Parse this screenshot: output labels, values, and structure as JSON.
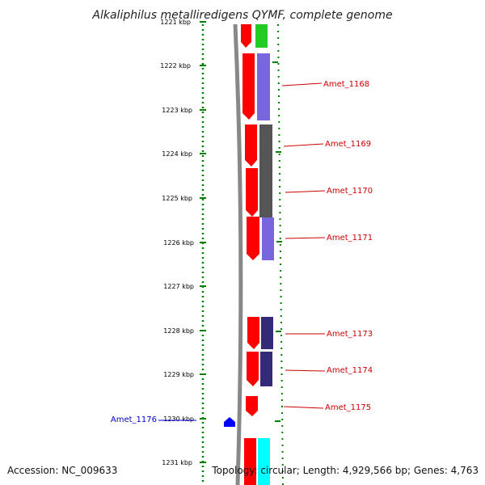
{
  "title": "Alkaliphilus metalliredigens QYMF, complete genome",
  "footer": {
    "accession": "Accession: NC_009633",
    "summary": "Topology: circular; Length: 4,929,566 bp; Genes: 4,763"
  },
  "ruler": {
    "ticks": [
      "1221 kbp",
      "1222 kbp",
      "1223 kbp",
      "1224 kbp",
      "1225 kbp",
      "1226 kbp",
      "1227 kbp",
      "1228 kbp",
      "1229 kbp",
      "1230 kbp",
      "1231 kbp"
    ]
  },
  "genes": [
    {
      "name": "Amet_1168"
    },
    {
      "name": "Amet_1169"
    },
    {
      "name": "Amet_1170"
    },
    {
      "name": "Amet_1171"
    },
    {
      "name": "Amet_1173"
    },
    {
      "name": "Amet_1174"
    },
    {
      "name": "Amet_1175"
    },
    {
      "name": "Amet_1176",
      "side": "left"
    }
  ],
  "colors": {
    "cds": "#ff0000",
    "backbone": "#888888",
    "ruler": "#008000",
    "cog_green": "#22cc22",
    "cog_purple": "#7766dd",
    "cog_gray": "#555555",
    "cog_navy": "#332b77",
    "cog_cyan": "#00ffff",
    "reverse": "#0000ff"
  }
}
